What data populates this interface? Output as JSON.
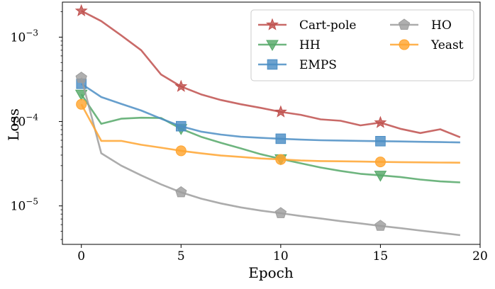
{
  "chart_data": {
    "type": "line",
    "title": "",
    "xlabel": "Epoch",
    "ylabel": "Loss",
    "xscale": "linear",
    "yscale": "log",
    "xlim": [
      -0.95,
      20
    ],
    "ylim": [
      3.5e-06,
      0.0026
    ],
    "xticks": [
      0,
      5,
      10,
      15,
      20
    ],
    "xtick_labels": [
      "0",
      "5",
      "10",
      "15",
      "20"
    ],
    "yticks": [
      1e-05,
      0.0001,
      0.001
    ],
    "ytick_labels": [
      [
        "10",
        "−5"
      ],
      [
        "10",
        "−4"
      ],
      [
        "10",
        "−3"
      ]
    ],
    "marker_epochs": [
      0,
      5,
      10,
      15
    ],
    "legend": {
      "position": "top-right",
      "columns": 2
    },
    "x": [
      0,
      1,
      2,
      3,
      4,
      5,
      6,
      7,
      8,
      9,
      10,
      11,
      12,
      13,
      14,
      15,
      16,
      17,
      18,
      19
    ],
    "series": [
      {
        "name": "Cart-pole",
        "color": "#c0504d",
        "marker": "star",
        "values": [
          0.00205,
          0.00155,
          0.00105,
          0.0007,
          0.00036,
          0.00026,
          0.00021,
          0.00018,
          0.00016,
          0.000145,
          0.00013,
          0.00012,
          0.000106,
          0.000102,
          9e-05,
          9.7e-05,
          8.2e-05,
          7.3e-05,
          8.1e-05,
          6.5e-05
        ]
      },
      {
        "name": "HH",
        "color": "#55a868",
        "marker": "triangle-down",
        "values": [
          0.00021,
          9.4e-05,
          0.000108,
          0.000111,
          0.00011,
          8.2e-05,
          6.6e-05,
          5.6e-05,
          4.8e-05,
          4.1e-05,
          3.6e-05,
          3.2e-05,
          2.85e-05,
          2.6e-05,
          2.4e-05,
          2.3e-05,
          2.2e-05,
          2.05e-05,
          1.95e-05,
          1.9e-05
        ]
      },
      {
        "name": "EMPS",
        "color": "#4c8ec4",
        "marker": "square",
        "values": [
          0.00028,
          0.000195,
          0.000162,
          0.000135,
          0.000108,
          8.8e-05,
          7.6e-05,
          7e-05,
          6.6e-05,
          6.4e-05,
          6.25e-05,
          6.1e-05,
          6e-05,
          5.95e-05,
          5.9e-05,
          5.85e-05,
          5.8e-05,
          5.75e-05,
          5.7e-05,
          5.65e-05
        ]
      },
      {
        "name": "HO",
        "color": "#9e9e9e",
        "marker": "pentagon",
        "values": [
          0.00033,
          4.2e-05,
          3e-05,
          2.3e-05,
          1.8e-05,
          1.45e-05,
          1.22e-05,
          1.07e-05,
          9.6e-06,
          8.8e-06,
          8.2e-06,
          7.6e-06,
          7.1e-06,
          6.6e-06,
          6.2e-06,
          5.8e-06,
          5.45e-06,
          5.1e-06,
          4.8e-06,
          4.5e-06
        ]
      },
      {
        "name": "Yeast",
        "color": "#ffa530",
        "marker": "circle",
        "values": [
          0.00016,
          5.9e-05,
          5.9e-05,
          5.3e-05,
          4.9e-05,
          4.5e-05,
          4.2e-05,
          3.95e-05,
          3.8e-05,
          3.65e-05,
          3.55e-05,
          3.45e-05,
          3.4e-05,
          3.38e-05,
          3.35e-05,
          3.32e-05,
          3.3e-05,
          3.28e-05,
          3.26e-05,
          3.25e-05
        ]
      }
    ]
  }
}
